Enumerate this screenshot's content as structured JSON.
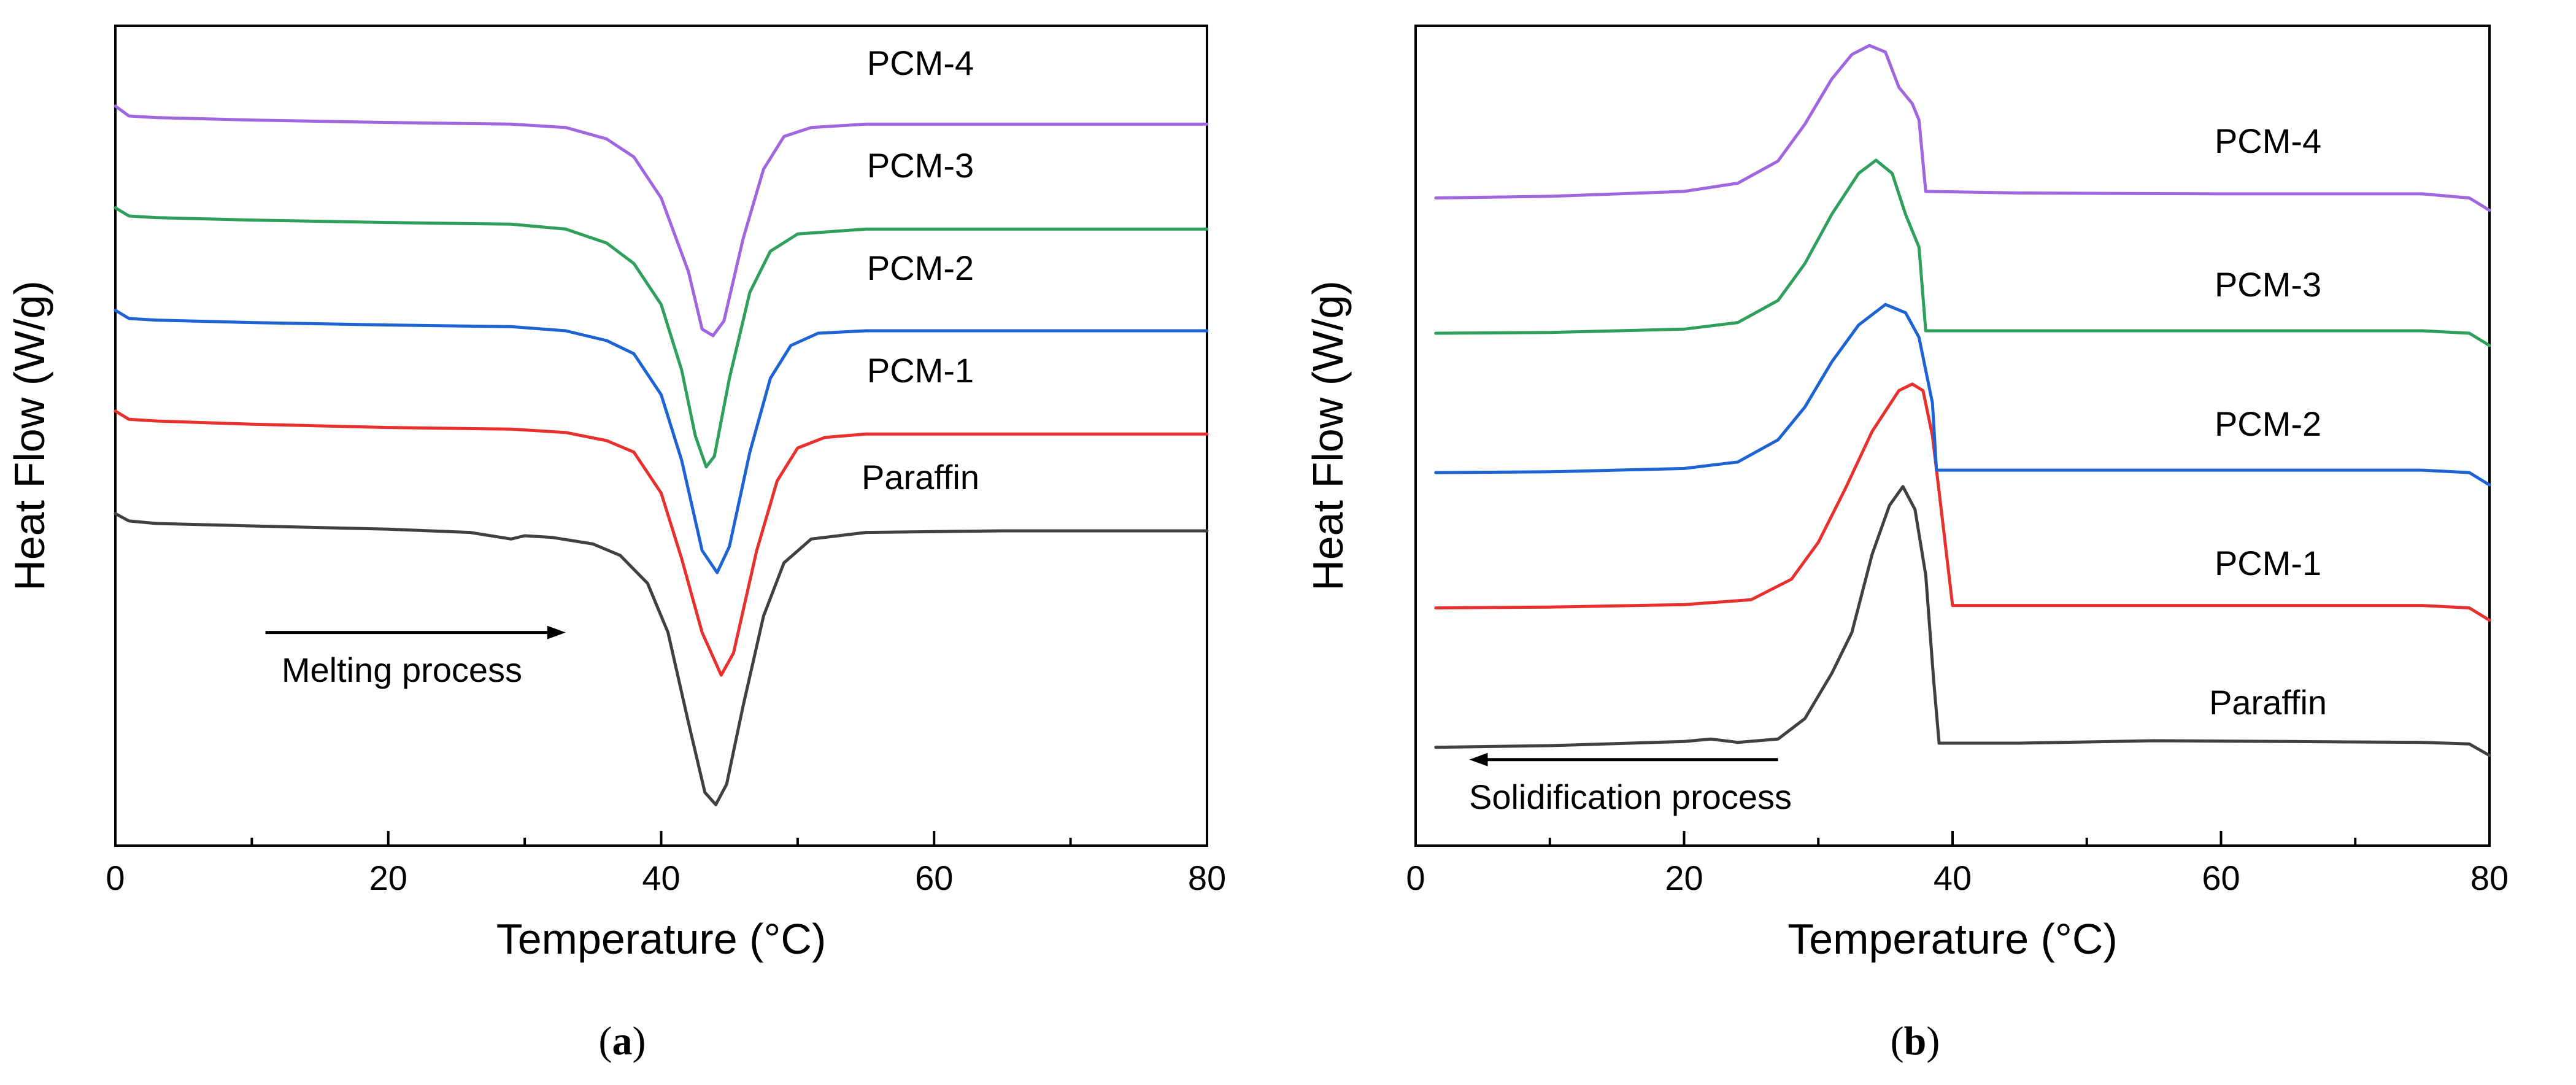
{
  "chart_data": [
    {
      "id": "a",
      "type": "line",
      "caption": "(a)",
      "caption_letter": "a",
      "xlabel": "Temperature (°C)",
      "ylabel": "Heat Flow (W/g)",
      "xlim": [
        0,
        80
      ],
      "ylim": [
        0,
        100
      ],
      "xticks": [
        0,
        20,
        40,
        60,
        80
      ],
      "x_minor_step": 10,
      "grid": false,
      "legend": "labels placed above each curve on the right",
      "annotation": {
        "text": "Melting process",
        "arrow_direction": "right",
        "arrow_from_x": 11,
        "arrow_to_x": 33,
        "arrow_y": 26,
        "text_x": 21,
        "text_y": 20
      },
      "series": [
        {
          "name": "PCM-4",
          "color": "#a066e0",
          "label_x": 59,
          "label_y": 94,
          "points": [
            [
              0,
              90.2
            ],
            [
              1,
              89.0
            ],
            [
              3,
              88.8
            ],
            [
              10,
              88.5
            ],
            [
              20,
              88.2
            ],
            [
              29,
              88.0
            ],
            [
              33,
              87.6
            ],
            [
              36,
              86.2
            ],
            [
              38,
              84.0
            ],
            [
              40,
              79.0
            ],
            [
              42,
              70.0
            ],
            [
              43,
              63.0
            ],
            [
              43.8,
              62.2
            ],
            [
              44.6,
              64.0
            ],
            [
              46,
              74.0
            ],
            [
              47.5,
              82.5
            ],
            [
              49,
              86.5
            ],
            [
              51,
              87.6
            ],
            [
              55,
              88.0
            ],
            [
              65,
              88.0
            ],
            [
              80,
              88.0
            ]
          ]
        },
        {
          "name": "PCM-3",
          "color": "#2ea05c",
          "label_x": 59,
          "label_y": 81.5,
          "points": [
            [
              0,
              77.8
            ],
            [
              1,
              76.8
            ],
            [
              3,
              76.6
            ],
            [
              10,
              76.3
            ],
            [
              20,
              76.0
            ],
            [
              29,
              75.8
            ],
            [
              33,
              75.2
            ],
            [
              36,
              73.5
            ],
            [
              38,
              71.0
            ],
            [
              40,
              66.0
            ],
            [
              41.5,
              58.0
            ],
            [
              42.5,
              50.0
            ],
            [
              43.3,
              46.2
            ],
            [
              43.9,
              47.5
            ],
            [
              45,
              57.0
            ],
            [
              46.5,
              67.5
            ],
            [
              48,
              72.5
            ],
            [
              50,
              74.6
            ],
            [
              55,
              75.2
            ],
            [
              65,
              75.2
            ],
            [
              80,
              75.2
            ]
          ]
        },
        {
          "name": "PCM-2",
          "color": "#1e63d4",
          "label_x": 59,
          "label_y": 69,
          "points": [
            [
              0,
              65.3
            ],
            [
              1,
              64.3
            ],
            [
              3,
              64.1
            ],
            [
              10,
              63.8
            ],
            [
              20,
              63.5
            ],
            [
              29,
              63.3
            ],
            [
              33,
              62.8
            ],
            [
              36,
              61.6
            ],
            [
              38,
              60.0
            ],
            [
              40,
              55.0
            ],
            [
              41.5,
              47.0
            ],
            [
              43,
              36.0
            ],
            [
              44.1,
              33.3
            ],
            [
              45,
              36.5
            ],
            [
              46.5,
              48.0
            ],
            [
              48,
              57.0
            ],
            [
              49.5,
              61.0
            ],
            [
              51.5,
              62.5
            ],
            [
              55,
              62.8
            ],
            [
              65,
              62.8
            ],
            [
              80,
              62.8
            ]
          ]
        },
        {
          "name": "PCM-1",
          "color": "#e8302e",
          "label_x": 59,
          "label_y": 56.5,
          "points": [
            [
              0,
              53.0
            ],
            [
              1,
              52.0
            ],
            [
              3,
              51.8
            ],
            [
              10,
              51.4
            ],
            [
              20,
              51.0
            ],
            [
              29,
              50.8
            ],
            [
              33,
              50.4
            ],
            [
              36,
              49.4
            ],
            [
              38,
              48.0
            ],
            [
              40,
              43.0
            ],
            [
              41.5,
              35.0
            ],
            [
              43,
              26.0
            ],
            [
              44.4,
              20.8
            ],
            [
              45.3,
              23.5
            ],
            [
              47,
              36.0
            ],
            [
              48.5,
              44.5
            ],
            [
              50,
              48.5
            ],
            [
              52,
              49.8
            ],
            [
              55,
              50.2
            ],
            [
              65,
              50.2
            ],
            [
              80,
              50.2
            ]
          ]
        },
        {
          "name": "Paraffin",
          "color": "#404040",
          "label_x": 59,
          "label_y": 43.5,
          "points": [
            [
              0,
              40.5
            ],
            [
              1,
              39.6
            ],
            [
              3,
              39.3
            ],
            [
              10,
              39.0
            ],
            [
              20,
              38.6
            ],
            [
              26,
              38.2
            ],
            [
              29,
              37.4
            ],
            [
              30,
              37.8
            ],
            [
              32,
              37.6
            ],
            [
              35,
              36.8
            ],
            [
              37,
              35.4
            ],
            [
              39,
              32.0
            ],
            [
              40.5,
              26.0
            ],
            [
              42,
              15.0
            ],
            [
              43.2,
              6.5
            ],
            [
              44,
              5.0
            ],
            [
              44.8,
              7.5
            ],
            [
              46,
              17.0
            ],
            [
              47.5,
              28.0
            ],
            [
              49,
              34.5
            ],
            [
              51,
              37.4
            ],
            [
              55,
              38.2
            ],
            [
              65,
              38.4
            ],
            [
              80,
              38.4
            ]
          ]
        }
      ]
    },
    {
      "id": "b",
      "type": "line",
      "caption": "(b)",
      "caption_letter": "b",
      "xlabel": "Temperature (°C)",
      "ylabel": "Heat Flow (W/g)",
      "xlim": [
        0,
        80
      ],
      "ylim": [
        0,
        100
      ],
      "xticks": [
        0,
        20,
        40,
        60,
        80
      ],
      "x_minor_step": 10,
      "grid": false,
      "legend": "labels placed above each curve on the right",
      "annotation": {
        "text": "Solidification process",
        "arrow_direction": "left",
        "arrow_from_x": 27,
        "arrow_to_x": 4,
        "arrow_y": 10.5,
        "text_x": 16,
        "text_y": 4.5
      },
      "series": [
        {
          "name": "PCM-4",
          "color": "#a066e0",
          "label_x": 63.5,
          "label_y": 84.5,
          "points": [
            [
              1.5,
              79.0
            ],
            [
              10,
              79.2
            ],
            [
              20,
              79.8
            ],
            [
              24,
              80.8
            ],
            [
              27,
              83.5
            ],
            [
              29,
              88.0
            ],
            [
              31,
              93.5
            ],
            [
              32.5,
              96.5
            ],
            [
              33.8,
              97.6
            ],
            [
              35,
              96.8
            ],
            [
              36,
              92.5
            ],
            [
              37,
              90.5
            ],
            [
              37.5,
              88.5
            ],
            [
              38,
              79.8
            ],
            [
              45,
              79.6
            ],
            [
              60,
              79.5
            ],
            [
              75,
              79.5
            ],
            [
              78.5,
              79.0
            ],
            [
              80,
              77.5
            ]
          ]
        },
        {
          "name": "PCM-3",
          "color": "#2ea05c",
          "label_x": 63.5,
          "label_y": 67,
          "points": [
            [
              1.5,
              62.5
            ],
            [
              10,
              62.6
            ],
            [
              20,
              63.0
            ],
            [
              24,
              63.8
            ],
            [
              27,
              66.5
            ],
            [
              29,
              71.0
            ],
            [
              31,
              77.0
            ],
            [
              33,
              82.0
            ],
            [
              34.3,
              83.6
            ],
            [
              35.5,
              82.0
            ],
            [
              36.5,
              77.0
            ],
            [
              37.5,
              73.0
            ],
            [
              38,
              62.8
            ],
            [
              45,
              62.8
            ],
            [
              60,
              62.8
            ],
            [
              75,
              62.8
            ],
            [
              78.5,
              62.5
            ],
            [
              80,
              61.0
            ]
          ]
        },
        {
          "name": "PCM-2",
          "color": "#1e63d4",
          "label_x": 63.5,
          "label_y": 50,
          "points": [
            [
              1.5,
              45.5
            ],
            [
              10,
              45.6
            ],
            [
              20,
              46.0
            ],
            [
              24,
              46.8
            ],
            [
              27,
              49.5
            ],
            [
              29,
              53.5
            ],
            [
              31,
              59.0
            ],
            [
              33,
              63.5
            ],
            [
              35,
              66.0
            ],
            [
              36.5,
              65.0
            ],
            [
              37.5,
              62.0
            ],
            [
              38.5,
              54.0
            ],
            [
              38.8,
              45.8
            ],
            [
              45,
              45.8
            ],
            [
              60,
              45.8
            ],
            [
              75,
              45.8
            ],
            [
              78.5,
              45.5
            ],
            [
              80,
              44.0
            ]
          ]
        },
        {
          "name": "PCM-1",
          "color": "#e8302e",
          "label_x": 63.5,
          "label_y": 33,
          "points": [
            [
              1.5,
              29.0
            ],
            [
              10,
              29.1
            ],
            [
              20,
              29.4
            ],
            [
              25,
              30.0
            ],
            [
              28,
              32.5
            ],
            [
              30,
              37.0
            ],
            [
              32,
              43.5
            ],
            [
              34,
              50.5
            ],
            [
              36,
              55.5
            ],
            [
              37,
              56.3
            ],
            [
              37.8,
              55.5
            ],
            [
              38.5,
              50.0
            ],
            [
              39.3,
              39.0
            ],
            [
              40,
              29.3
            ],
            [
              45,
              29.3
            ],
            [
              60,
              29.3
            ],
            [
              75,
              29.3
            ],
            [
              78.5,
              29.0
            ],
            [
              80,
              27.5
            ]
          ]
        },
        {
          "name": "Paraffin",
          "color": "#404040",
          "label_x": 63.5,
          "label_y": 16,
          "points": [
            [
              1.5,
              12.0
            ],
            [
              10,
              12.2
            ],
            [
              20,
              12.7
            ],
            [
              22,
              13.0
            ],
            [
              24,
              12.6
            ],
            [
              27,
              13.0
            ],
            [
              29,
              15.5
            ],
            [
              31,
              21.0
            ],
            [
              32.5,
              26.0
            ],
            [
              34,
              35.5
            ],
            [
              35.3,
              41.5
            ],
            [
              36.3,
              43.8
            ],
            [
              37.2,
              41.0
            ],
            [
              38,
              33.0
            ],
            [
              38.6,
              20.0
            ],
            [
              39,
              12.5
            ],
            [
              45,
              12.5
            ],
            [
              55,
              12.8
            ],
            [
              65,
              12.7
            ],
            [
              75,
              12.6
            ],
            [
              78.5,
              12.4
            ],
            [
              80,
              11.0
            ]
          ]
        }
      ]
    }
  ]
}
